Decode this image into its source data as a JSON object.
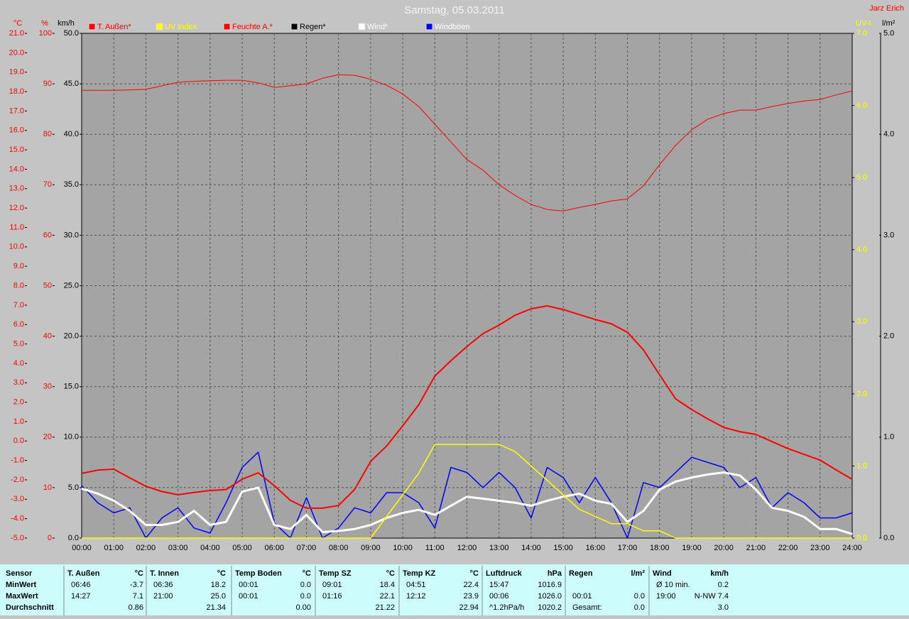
{
  "chart_data": {
    "type": "line",
    "title": "Samstag, 05.03.2011",
    "author": "Jarz Erich",
    "categories": [
      "00:00",
      null,
      "01:00",
      null,
      "02:00",
      null,
      "03:00",
      null,
      "04:00",
      null,
      "05:00",
      null,
      "06:00",
      null,
      "07:00",
      null,
      "08:00",
      null,
      "09:00",
      null,
      "10:00",
      null,
      "11:00",
      null,
      "12:00",
      null,
      "13:00",
      null,
      "14:00",
      null,
      "15:00",
      null,
      "16:00",
      null,
      "17:00",
      null,
      "18:00",
      null,
      "19:00",
      null,
      "20:00",
      null,
      "21:00",
      null,
      "22:00",
      null,
      "23:00",
      null,
      "24:00"
    ],
    "ylabel": "°C",
    "ycolor": "#ff0000",
    "ylim": [
      -5,
      21
    ],
    "yticks": [
      {
        "value": -5,
        "label": "-5.0"
      },
      {
        "value": -4,
        "label": "-4.0"
      },
      {
        "value": -3,
        "label": "-3.0"
      },
      {
        "value": -2,
        "label": "-2.0"
      },
      {
        "value": -1,
        "label": "-1.0"
      },
      {
        "value": 0,
        "label": "0.0"
      },
      {
        "value": 1,
        "label": "1.0"
      },
      {
        "value": 2,
        "label": "2.0"
      },
      {
        "value": 3,
        "label": "3.0"
      },
      {
        "value": 4,
        "label": "4.0"
      },
      {
        "value": 5,
        "label": "5.0"
      },
      {
        "value": 6,
        "label": "6.0"
      },
      {
        "value": 7,
        "label": "7.0"
      },
      {
        "value": 8,
        "label": "8.0"
      },
      {
        "value": 9,
        "label": "9.0"
      },
      {
        "value": 10,
        "label": "10.0"
      },
      {
        "value": 11,
        "label": "11.0"
      },
      {
        "value": 12,
        "label": "12.0"
      },
      {
        "value": 13,
        "label": "13.0"
      },
      {
        "value": 14,
        "label": "14.0"
      },
      {
        "value": 15,
        "label": "15.0"
      },
      {
        "value": 16,
        "label": "16.0"
      },
      {
        "value": 17,
        "label": "17.0"
      },
      {
        "value": 18,
        "label": "18.0"
      },
      {
        "value": 19,
        "label": "19.0"
      },
      {
        "value": 20,
        "label": "20.0"
      },
      {
        "value": 21,
        "label": "21.0"
      }
    ],
    "y2label": "%",
    "y2color": "#ff0000",
    "y2lim": [
      0,
      100
    ],
    "y2ticks": [
      0,
      10,
      20,
      30,
      40,
      50,
      60,
      70,
      80,
      90,
      100
    ],
    "y3label": "km/h",
    "y3color": "#000000",
    "y3lim": [
      0,
      50
    ],
    "y3ticks": [
      {
        "value": 0,
        "label": "0.0"
      },
      {
        "value": 5,
        "label": "5.0"
      },
      {
        "value": 10,
        "label": "10.0"
      },
      {
        "value": 15,
        "label": "15.0"
      },
      {
        "value": 20,
        "label": "20.0"
      },
      {
        "value": 25,
        "label": "25.0"
      },
      {
        "value": 30,
        "label": "30.0"
      },
      {
        "value": 35,
        "label": "35.0"
      },
      {
        "value": 40,
        "label": "40.0"
      },
      {
        "value": 45,
        "label": "45.0"
      },
      {
        "value": 50,
        "label": "50.0"
      }
    ],
    "y4label": "UV-I",
    "y4color": "#ffff00",
    "y4lim": [
      0,
      7
    ],
    "y4ticks": [
      {
        "value": 0,
        "label": "0.0"
      },
      {
        "value": 1,
        "label": "1.0"
      },
      {
        "value": 2,
        "label": "2.0"
      },
      {
        "value": 3,
        "label": "3.0"
      },
      {
        "value": 4,
        "label": "4.0"
      },
      {
        "value": 5,
        "label": "5.0"
      },
      {
        "value": 6,
        "label": "6.0"
      },
      {
        "value": 7,
        "label": "7.0"
      }
    ],
    "y5label": "l/m²",
    "y5color": "#000000",
    "y5lim": [
      0,
      5
    ],
    "y5ticks": [
      {
        "value": 0,
        "label": "0.0"
      },
      {
        "value": 1,
        "label": "1.0"
      },
      {
        "value": 2,
        "label": "2.0"
      },
      {
        "value": 3,
        "label": "3.0"
      },
      {
        "value": 4,
        "label": "4.0"
      },
      {
        "value": 5,
        "label": "5.0"
      }
    ],
    "grid": true,
    "series": [
      {
        "name": "T. Außen*",
        "color": "#ff0000",
        "axis": "y",
        "values": [
          -1.67,
          -1.5,
          -1.45,
          -1.9,
          -2.33,
          -2.6,
          -2.77,
          -2.65,
          -2.55,
          -2.5,
          -1.97,
          -1.64,
          -2.3,
          -3.06,
          -3.46,
          -3.46,
          -3.32,
          -2.5,
          -1.05,
          -0.25,
          0.78,
          1.87,
          3.34,
          4.14,
          4.87,
          5.53,
          5.97,
          6.48,
          6.81,
          6.96,
          6.77,
          6.51,
          6.26,
          6.04,
          5.6,
          4.69,
          3.41,
          2.17,
          1.62,
          1.14,
          0.7,
          0.48,
          0.34,
          -0.03,
          -0.39,
          -0.69,
          -0.98,
          -1.49,
          -1.97
        ]
      },
      {
        "name": "UV Index",
        "color": "#ffff00",
        "axis": "y4",
        "values": [
          0,
          0,
          0,
          0,
          0,
          0,
          0,
          0,
          0,
          0,
          0,
          0,
          0,
          0,
          0,
          0,
          0,
          0,
          0,
          0.3,
          0.6,
          0.9,
          1.3,
          1.3,
          1.3,
          1.3,
          1.3,
          1.2,
          1.0,
          0.8,
          0.6,
          0.4,
          0.3,
          0.2,
          0.2,
          0.1,
          0.1,
          0,
          0,
          0,
          0,
          0,
          0,
          0,
          0,
          0,
          0,
          0,
          0
        ]
      },
      {
        "name": "Feuchte A.*",
        "color": "#ff0000",
        "axis": "y2",
        "values": [
          88.7,
          88.7,
          88.7,
          88.8,
          88.9,
          89.6,
          90.3,
          90.5,
          90.6,
          90.7,
          90.7,
          90.2,
          89.3,
          89.6,
          90.0,
          91.1,
          91.8,
          91.7,
          90.9,
          89.7,
          88.0,
          85.5,
          82.0,
          78.5,
          75.0,
          72.9,
          70.0,
          67.9,
          66.1,
          65.1,
          64.8,
          65.5,
          66.1,
          66.8,
          67.2,
          69.8,
          74.0,
          77.8,
          80.9,
          83.0,
          84.1,
          84.8,
          84.8,
          85.5,
          86.1,
          86.6,
          86.9,
          87.8,
          88.6
        ]
      },
      {
        "name": "Regen*",
        "color": "#000000",
        "axis": "y5",
        "values": [
          0,
          0,
          0,
          0,
          0,
          0,
          0,
          0,
          0,
          0,
          0,
          0,
          0,
          0,
          0,
          0,
          0,
          0,
          0,
          0,
          0,
          0,
          0,
          0,
          0,
          0,
          0,
          0,
          0,
          0,
          0,
          0,
          0,
          0,
          0,
          0,
          0,
          0,
          0,
          0,
          0,
          0,
          0,
          0,
          0,
          0,
          0,
          0,
          0
        ]
      },
      {
        "name": "Wind*",
        "color": "#ffffff",
        "axis": "y3",
        "values": [
          4.9,
          4.4,
          3.7,
          2.7,
          1.3,
          1.3,
          1.6,
          2.7,
          1.3,
          1.6,
          4.6,
          5.0,
          1.3,
          0.9,
          2.3,
          0.6,
          0.7,
          0.9,
          1.3,
          2.0,
          2.5,
          2.8,
          2.3,
          3.2,
          4.1,
          3.9,
          3.7,
          3.5,
          3.2,
          3.7,
          4.1,
          4.4,
          3.7,
          3.4,
          1.6,
          2.7,
          4.8,
          5.6,
          6.0,
          6.3,
          6.5,
          6.2,
          4.8,
          3.0,
          2.7,
          2.1,
          0.9,
          0.9,
          0.4
        ]
      },
      {
        "name": "Windböen",
        "color": "#0000ff",
        "axis": "y3",
        "values": [
          5.2,
          3.5,
          2.5,
          3.0,
          0,
          2.0,
          3.0,
          1.0,
          0.5,
          3.5,
          7.0,
          8.5,
          1.5,
          0,
          4.0,
          0,
          1.0,
          3.0,
          2.5,
          4.5,
          4.5,
          3.5,
          1.0,
          7.0,
          6.5,
          5.0,
          6.5,
          5.0,
          2.0,
          7.0,
          6.0,
          3.5,
          6.0,
          3.5,
          0,
          5.5,
          5.0,
          6.5,
          8.0,
          7.5,
          7.0,
          5.0,
          6.0,
          3.0,
          4.5,
          3.5,
          2.0,
          2.0,
          2.5
        ]
      }
    ]
  },
  "table": {
    "row_labels": [
      "Sensor",
      "MinWert",
      "MaxWert",
      "Durchschnitt"
    ],
    "sections": [
      {
        "title": "T. Außen",
        "unit": "°C",
        "rows": [
          [
            "06:46",
            "-3.7"
          ],
          [
            "14:27",
            "7.1"
          ],
          [
            null,
            "0.86"
          ]
        ]
      },
      {
        "title": "T. Innen",
        "unit": "°C",
        "rows": [
          [
            "06:36",
            "18.2"
          ],
          [
            "21:00",
            "25.0"
          ],
          [
            null,
            "21.34"
          ]
        ]
      },
      {
        "title": "Temp Boden",
        "unit": "°C",
        "rows": [
          [
            "00:01",
            "0.0"
          ],
          [
            "00:01",
            "0.0"
          ],
          [
            null,
            "0.00"
          ]
        ]
      },
      {
        "title": "Temp SZ",
        "unit": "°C",
        "rows": [
          [
            "09:01",
            "18.4"
          ],
          [
            "01:16",
            "22.1"
          ],
          [
            null,
            "21.22"
          ]
        ]
      },
      {
        "title": "Temp KZ",
        "unit": "°C",
        "rows": [
          [
            "04:51",
            "22.4"
          ],
          [
            "12:12",
            "23.9"
          ],
          [
            null,
            "22.94"
          ]
        ]
      },
      {
        "title": "Luftdruck",
        "unit": "hPa",
        "rows": [
          [
            "15:47",
            "1016.9"
          ],
          [
            "00:06",
            "1026.0"
          ],
          [
            "^1.2hPa/h",
            "1020.2"
          ]
        ]
      },
      {
        "title": "Regen",
        "unit": "l/m²",
        "rows": [
          [
            null,
            null
          ],
          [
            "00:01",
            "0.0"
          ],
          [
            "Gesamt:",
            "0.0"
          ]
        ]
      },
      {
        "title": "Wind",
        "unit": "km/h",
        "rows": [
          [
            "Ø 10 min.",
            "0.2"
          ],
          [
            "19:00",
            "N-NW 7.4"
          ],
          [
            null,
            "3.0"
          ]
        ]
      }
    ]
  }
}
